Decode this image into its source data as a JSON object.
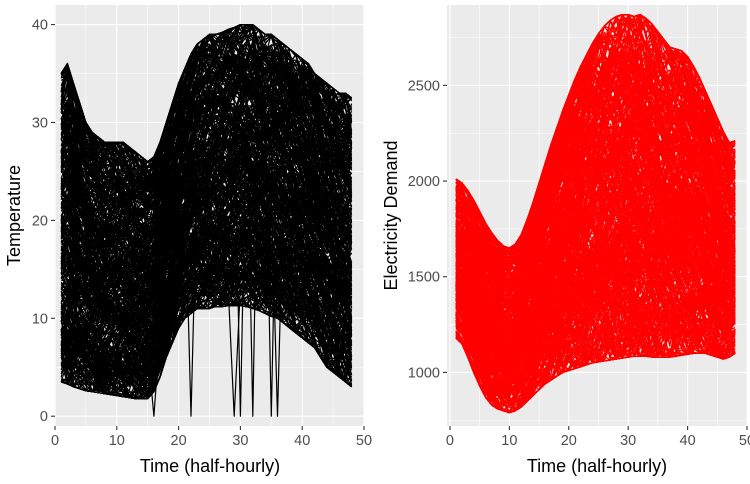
{
  "chart_data": [
    {
      "type": "line",
      "xlabel": "Time (half-hourly)",
      "ylabel": "Temperature",
      "xlim": [
        0,
        50
      ],
      "ylim": [
        -1,
        42
      ],
      "x_ticks": [
        0,
        10,
        20,
        30,
        40,
        50
      ],
      "y_ticks": [
        0,
        10,
        20,
        30,
        40
      ],
      "x_tick_labels": [
        "0",
        "10",
        "20",
        "30",
        "40",
        "50"
      ],
      "y_tick_labels": [
        "0",
        "10",
        "20",
        "30",
        "40"
      ],
      "line_color": "#000000",
      "x": [
        1,
        2,
        3,
        4,
        5,
        6,
        7,
        8,
        9,
        10,
        11,
        12,
        13,
        14,
        15,
        16,
        17,
        18,
        19,
        20,
        21,
        22,
        23,
        24,
        25,
        26,
        27,
        28,
        29,
        30,
        31,
        32,
        33,
        34,
        35,
        36,
        37,
        38,
        39,
        40,
        41,
        42,
        43,
        44,
        45,
        46,
        47,
        48
      ],
      "series_count": 400,
      "envelope": {
        "min": [
          3.5,
          3.3,
          3,
          2.8,
          2.6,
          2.5,
          2.4,
          2.3,
          2.2,
          2.1,
          2,
          1.9,
          1.8,
          1.8,
          1.8,
          2.5,
          4,
          6,
          7.5,
          9,
          10,
          10.5,
          11,
          11,
          11,
          11.2,
          11.2,
          11.3,
          11.3,
          11.3,
          11.2,
          11,
          10.8,
          10.5,
          10.2,
          10,
          9.5,
          9,
          8.5,
          8,
          7.5,
          7,
          6,
          5,
          4.5,
          4,
          3.5,
          3
        ],
        "max": [
          35,
          36,
          34,
          32,
          30,
          29,
          28.5,
          28,
          28,
          28,
          28,
          27.5,
          27,
          26.5,
          26,
          26.5,
          28,
          30,
          32,
          34,
          35.5,
          37,
          38,
          38.5,
          39,
          39,
          39.2,
          39.5,
          39.7,
          40,
          40,
          40,
          39.5,
          39,
          39,
          38.5,
          38,
          37.5,
          37,
          36.5,
          36,
          35,
          34.5,
          34,
          33.5,
          33,
          33,
          32.5
        ]
      },
      "annotations": {
        "drops_to_zero_at_x": [
          16,
          22,
          29,
          30,
          32,
          35,
          36
        ]
      }
    },
    {
      "type": "line",
      "xlabel": "Time (half-hourly)",
      "ylabel": "Electricity Demand",
      "xlim": [
        -0.5,
        50
      ],
      "ylim": [
        720,
        2920
      ],
      "x_ticks": [
        0,
        10,
        20,
        30,
        40,
        50
      ],
      "y_ticks": [
        1000,
        1500,
        2000,
        2500
      ],
      "x_tick_labels": [
        "0",
        "10",
        "20",
        "30",
        "40",
        "50"
      ],
      "y_tick_labels": [
        "1000",
        "1500",
        "2000",
        "2500"
      ],
      "line_color": "#ff0000",
      "x": [
        1,
        2,
        3,
        4,
        5,
        6,
        7,
        8,
        9,
        10,
        11,
        12,
        13,
        14,
        15,
        16,
        17,
        18,
        19,
        20,
        21,
        22,
        23,
        24,
        25,
        26,
        27,
        28,
        29,
        30,
        31,
        32,
        33,
        34,
        35,
        36,
        37,
        38,
        39,
        40,
        41,
        42,
        43,
        44,
        45,
        46,
        47,
        48
      ],
      "series_count": 400,
      "envelope": {
        "min": [
          1180,
          1150,
          1080,
          1000,
          930,
          870,
          830,
          810,
          800,
          790,
          800,
          820,
          850,
          880,
          910,
          940,
          960,
          980,
          1000,
          1010,
          1020,
          1030,
          1040,
          1050,
          1055,
          1060,
          1065,
          1070,
          1075,
          1080,
          1085,
          1085,
          1085,
          1080,
          1080,
          1080,
          1080,
          1085,
          1090,
          1095,
          1100,
          1100,
          1100,
          1090,
          1080,
          1070,
          1080,
          1100
        ],
        "max": [
          2010,
          1990,
          1950,
          1900,
          1840,
          1780,
          1730,
          1690,
          1660,
          1650,
          1670,
          1720,
          1800,
          1890,
          1990,
          2090,
          2190,
          2280,
          2370,
          2450,
          2530,
          2600,
          2660,
          2720,
          2770,
          2810,
          2840,
          2860,
          2870,
          2870,
          2860,
          2870,
          2850,
          2820,
          2780,
          2740,
          2700,
          2690,
          2680,
          2650,
          2600,
          2540,
          2470,
          2400,
          2330,
          2260,
          2200,
          2210
        ]
      }
    }
  ]
}
